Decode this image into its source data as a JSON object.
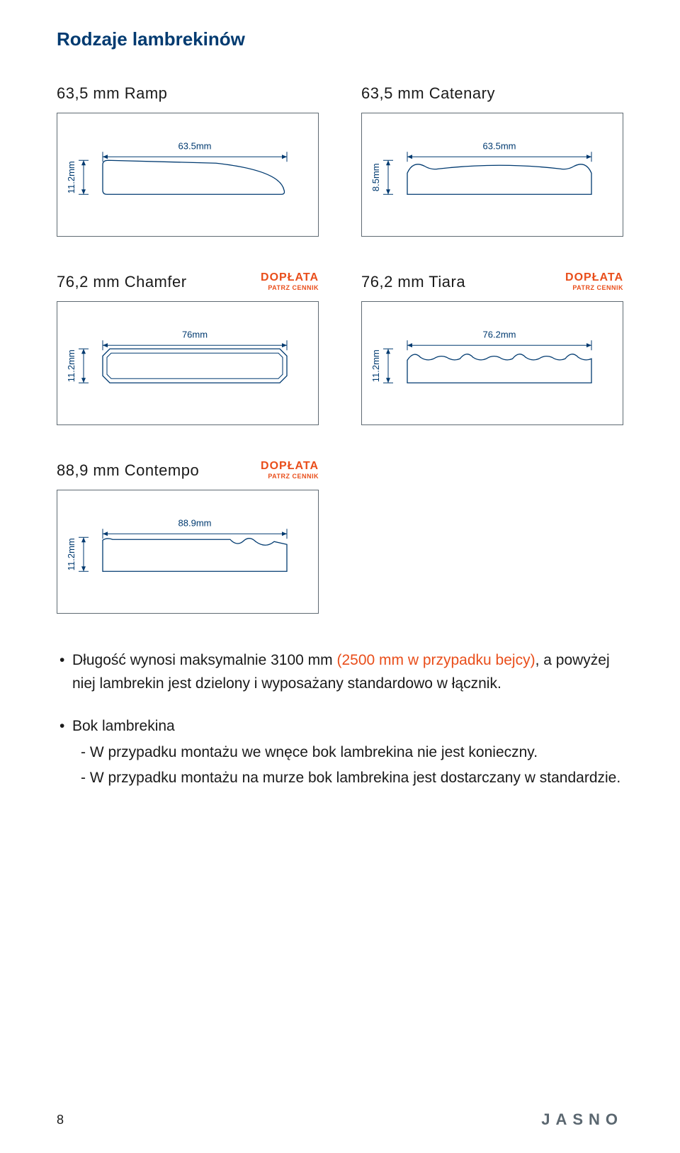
{
  "colors": {
    "title": "#003a70",
    "body": "#1a1a1a",
    "accent": "#e94e1b",
    "box_border": "#5f6a72",
    "dim_line": "#003a70",
    "shape_stroke": "#003a70",
    "shape_fill": "#ffffff",
    "logo": "#5b6770"
  },
  "page": {
    "title": "Rodzaje lambrekinów",
    "number": "8",
    "logo": "JASNO"
  },
  "badge": {
    "main": "DOPŁATA",
    "sub": "PATRZ CENNIK"
  },
  "items": [
    {
      "name": "63,5 mm Ramp",
      "dim_top": "63.5mm",
      "dim_left": "11.2mm",
      "badge": false,
      "shape": "ramp"
    },
    {
      "name": "63,5 mm Catenary",
      "dim_top": "63.5mm",
      "dim_left": "8.5mm",
      "badge": false,
      "shape": "catenary"
    },
    {
      "name": "76,2 mm Chamfer",
      "dim_top": "76mm",
      "dim_left": "11.2mm",
      "badge": true,
      "shape": "chamfer"
    },
    {
      "name": "76,2 mm Tiara",
      "dim_top": "76.2mm",
      "dim_left": "11.2mm",
      "badge": true,
      "shape": "tiara"
    },
    {
      "name": "88,9 mm Contempo",
      "dim_top": "88.9mm",
      "dim_left": "11.2mm",
      "badge": true,
      "shape": "contempo"
    }
  ],
  "bullets": {
    "b1_a": "Długość wynosi maksymalnie 3100 mm ",
    "b1_accent": "(2500 mm w przypadku bejcy)",
    "b1_b": ", a powyżej niej lambrekin jest dzielony i wyposażany standardowo w łącznik.",
    "b2_head": "Bok lambrekina",
    "b2_s1": "- W przypadku montażu we wnęce bok lambrekina nie jest konieczny.",
    "b2_s2": "- W przypadku montażu na murze bok lambrekina jest dostarczany w standardzie."
  },
  "diagram_style": {
    "stroke_width": 1.3,
    "dim_stroke_width": 1
  }
}
